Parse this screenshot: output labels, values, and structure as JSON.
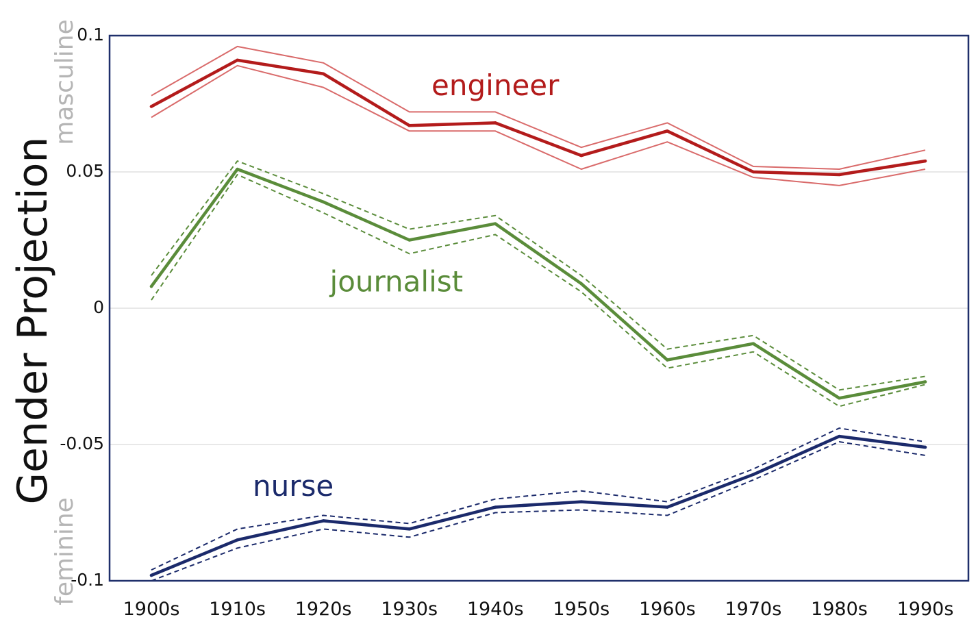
{
  "chart_data": {
    "type": "line",
    "ylabel": "Gender Projection",
    "annotations": {
      "top": "masculine",
      "bottom": "feminine"
    },
    "categories": [
      "1900s",
      "1910s",
      "1920s",
      "1930s",
      "1940s",
      "1950s",
      "1960s",
      "1970s",
      "1980s",
      "1990s"
    ],
    "ylim": [
      -0.1,
      0.1
    ],
    "yticks": [
      {
        "value": 0.1,
        "label": "0.1"
      },
      {
        "value": 0.05,
        "label": "0.05"
      },
      {
        "value": 0,
        "label": "0"
      },
      {
        "value": -0.05,
        "label": "-0.05"
      },
      {
        "value": -0.1,
        "label": "-0.1"
      }
    ],
    "grid": true,
    "frame_color": "#1f2f6b",
    "series": [
      {
        "name": "engineer",
        "color": "#b31b1b",
        "band_color": "#d96a6a",
        "band_style": "solid",
        "values": [
          0.074,
          0.091,
          0.086,
          0.067,
          0.068,
          0.056,
          0.065,
          0.05,
          0.049,
          0.054
        ],
        "upper": [
          0.078,
          0.096,
          0.09,
          0.072,
          0.072,
          0.059,
          0.068,
          0.052,
          0.051,
          0.058
        ],
        "lower": [
          0.07,
          0.089,
          0.081,
          0.065,
          0.065,
          0.051,
          0.061,
          0.048,
          0.045,
          0.051
        ],
        "label_value": 0.081,
        "label_x": 4.0
      },
      {
        "name": "journalist",
        "color": "#5a8c3a",
        "band_color": "#5a8c3a",
        "band_style": "dashed",
        "values": [
          0.008,
          0.051,
          0.039,
          0.025,
          0.031,
          0.009,
          -0.019,
          -0.013,
          -0.033,
          -0.027
        ],
        "upper": [
          0.012,
          0.054,
          0.042,
          0.029,
          0.034,
          0.012,
          -0.015,
          -0.01,
          -0.03,
          -0.025
        ],
        "lower": [
          0.003,
          0.049,
          0.035,
          0.02,
          0.027,
          0.006,
          -0.022,
          -0.016,
          -0.036,
          -0.028
        ],
        "label_value": 0.009,
        "label_x": 2.85
      },
      {
        "name": "nurse",
        "color": "#1b2a6b",
        "band_color": "#1b2a6b",
        "band_style": "dashed",
        "values": [
          -0.098,
          -0.085,
          -0.078,
          -0.081,
          -0.073,
          -0.071,
          -0.073,
          -0.061,
          -0.047,
          -0.051
        ],
        "upper": [
          -0.096,
          -0.081,
          -0.076,
          -0.079,
          -0.07,
          -0.067,
          -0.071,
          -0.059,
          -0.044,
          -0.049
        ],
        "lower": [
          -0.1,
          -0.088,
          -0.081,
          -0.084,
          -0.075,
          -0.074,
          -0.076,
          -0.063,
          -0.049,
          -0.054
        ],
        "label_value": -0.066,
        "label_x": 1.65
      }
    ]
  }
}
